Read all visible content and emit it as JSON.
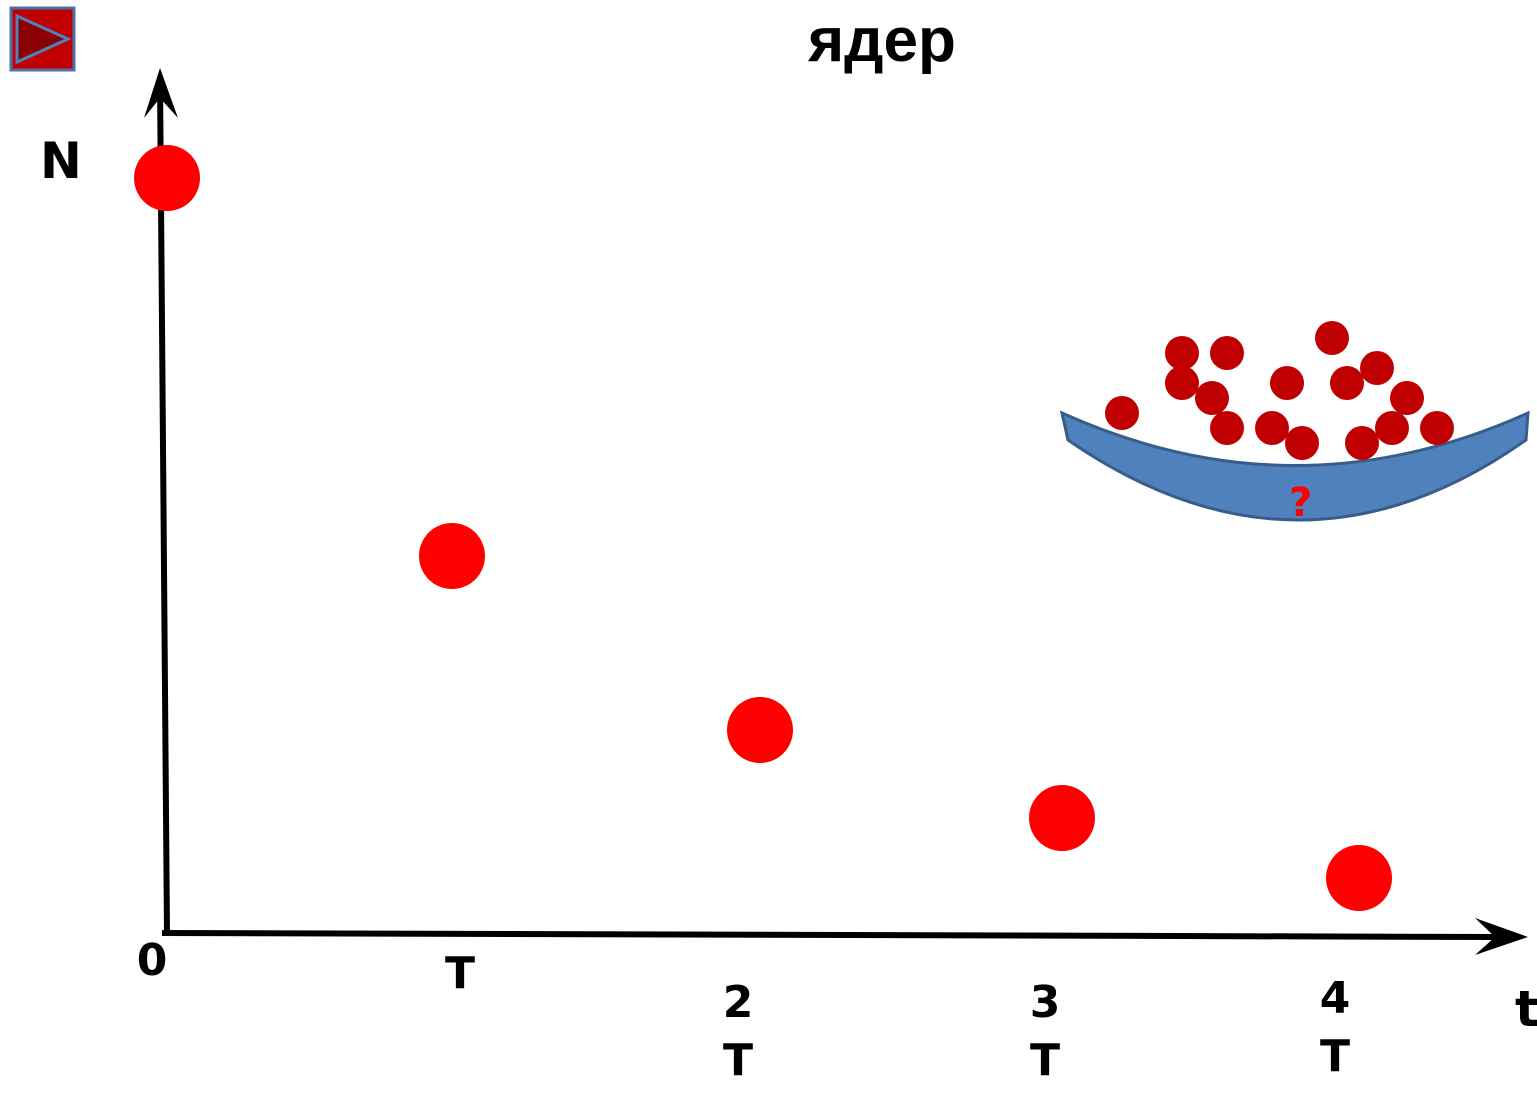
{
  "title": "ядер",
  "axes": {
    "y_label": "N",
    "x_label": "t"
  },
  "x_ticks": [
    "0",
    "T",
    "2T",
    "3T",
    "4T"
  ],
  "basket_label": "?"
}
